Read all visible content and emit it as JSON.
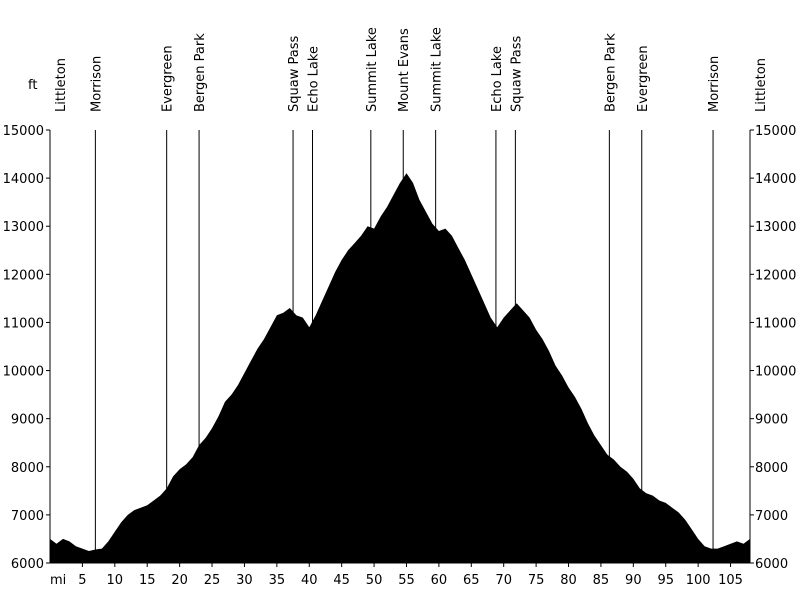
{
  "chart_data": {
    "type": "area",
    "title": "",
    "xlabel": "mi",
    "ylabel": "ft",
    "xlim": [
      0,
      108
    ],
    "ylim": [
      6000,
      15000
    ],
    "x_ticks": [
      5,
      10,
      15,
      20,
      25,
      30,
      35,
      40,
      45,
      50,
      55,
      60,
      65,
      70,
      75,
      80,
      85,
      90,
      95,
      100,
      105
    ],
    "y_ticks": [
      6000,
      7000,
      8000,
      9000,
      10000,
      11000,
      12000,
      13000,
      14000,
      15000
    ],
    "grid": false,
    "fill_color": "#000000",
    "series": [
      {
        "x": [
          0,
          1,
          2,
          3,
          4,
          5,
          6,
          7,
          8,
          9,
          10,
          11,
          12,
          13,
          14,
          15,
          16,
          17,
          18,
          19,
          20,
          21,
          22,
          23,
          24,
          25,
          26,
          27,
          28,
          29,
          30,
          31,
          32,
          33,
          34,
          35,
          36,
          37,
          38,
          39,
          40,
          41,
          42,
          43,
          44,
          45,
          46,
          47,
          48,
          49,
          50,
          51,
          52,
          53,
          54,
          55,
          56,
          57,
          58,
          59,
          60,
          61,
          62,
          63,
          64,
          65,
          66,
          67,
          68,
          69,
          70,
          71,
          72,
          73,
          74,
          75,
          76,
          77,
          78,
          79,
          80,
          81,
          82,
          83,
          84,
          85,
          86,
          87,
          88,
          89,
          90,
          91,
          92,
          93,
          94,
          95,
          96,
          97,
          98,
          99,
          100,
          101,
          102,
          103,
          104,
          105,
          106,
          107,
          108
        ],
        "values": [
          6500,
          6400,
          6500,
          6450,
          6350,
          6300,
          6250,
          6280,
          6300,
          6450,
          6650,
          6850,
          7000,
          7100,
          7150,
          7200,
          7300,
          7400,
          7550,
          7800,
          7950,
          8050,
          8200,
          8450,
          8600,
          8800,
          9050,
          9350,
          9500,
          9700,
          9950,
          10200,
          10450,
          10650,
          10900,
          11150,
          11200,
          11300,
          11150,
          11100,
          10900,
          11150,
          11450,
          11750,
          12050,
          12300,
          12500,
          12650,
          12800,
          13000,
          12950,
          13200,
          13400,
          13650,
          13900,
          14100,
          13900,
          13550,
          13300,
          13050,
          12900,
          12950,
          12800,
          12550,
          12300,
          12000,
          11700,
          11400,
          11100,
          10900,
          11100,
          11250,
          11400,
          11250,
          11100,
          10850,
          10650,
          10400,
          10100,
          9900,
          9650,
          9450,
          9200,
          8900,
          8650,
          8450,
          8250,
          8150,
          8000,
          7900,
          7750,
          7550,
          7450,
          7400,
          7300,
          7250,
          7150,
          7050,
          6900,
          6700,
          6500,
          6350,
          6300,
          6300,
          6350,
          6400,
          6450,
          6400,
          6500
        ]
      }
    ],
    "waypoints": [
      {
        "name": "Littleton",
        "x": 0
      },
      {
        "name": "Morrison",
        "x": 7
      },
      {
        "name": "Evergreen",
        "x": 18
      },
      {
        "name": "Bergen Park",
        "x": 23
      },
      {
        "name": "Squaw Pass",
        "x": 37.5
      },
      {
        "name": "Echo Lake",
        "x": 40.5
      },
      {
        "name": "Summit Lake",
        "x": 49.5
      },
      {
        "name": "Mount Evans",
        "x": 54.5
      },
      {
        "name": "Summit Lake",
        "x": 59.5
      },
      {
        "name": "Echo Lake",
        "x": 68.8
      },
      {
        "name": "Squaw Pass",
        "x": 71.8
      },
      {
        "name": "Bergen Park",
        "x": 86.3
      },
      {
        "name": "Evergreen",
        "x": 91.3
      },
      {
        "name": "Morrison",
        "x": 102.3
      },
      {
        "name": "Littleton",
        "x": 108
      }
    ]
  }
}
